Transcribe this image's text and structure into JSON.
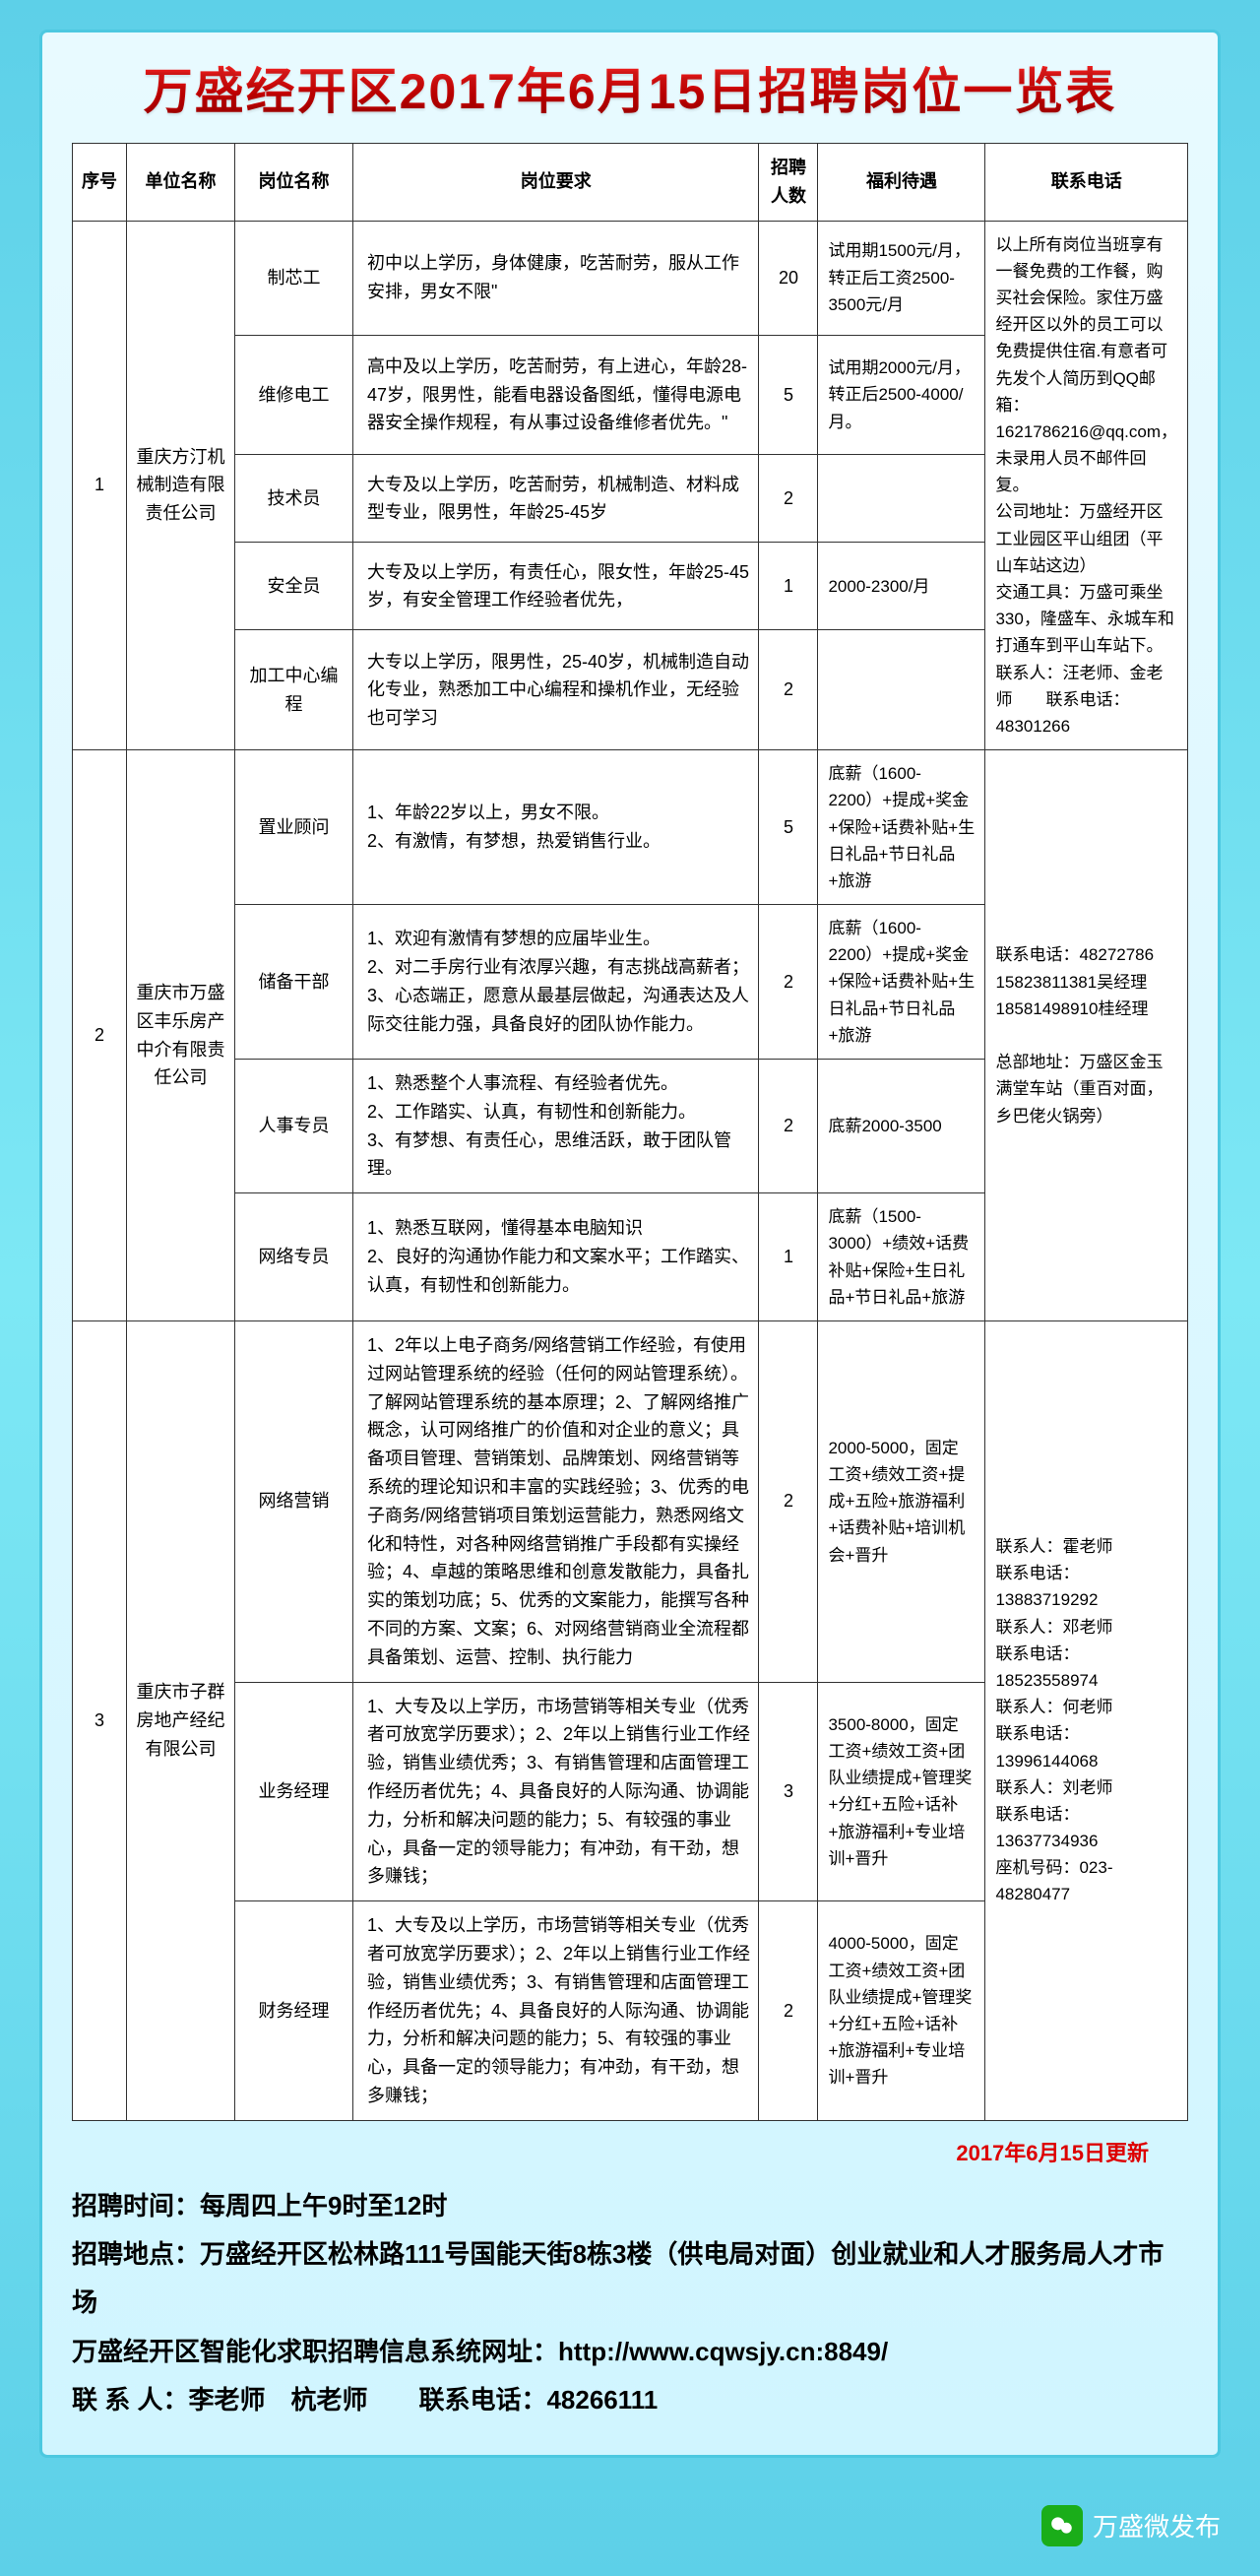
{
  "title": "万盛经开区2017年6月15日招聘岗位一览表",
  "headers": {
    "seq": "序号",
    "company": "单位名称",
    "position": "岗位名称",
    "requirements": "岗位要求",
    "count": "招聘人数",
    "benefits": "福利待遇",
    "contact": "联系电话"
  },
  "companies": [
    {
      "seq": "1",
      "name": "重庆方汀机械制造有限责任公司",
      "contact": "以上所有岗位当班享有一餐免费的工作餐，购买社会保险。家住万盛经开区以外的员工可以免费提供住宿.有意者可先发个人简历到QQ邮箱：1621786216@qq.com，未录用人员不邮件回复。\n公司地址：万盛经开区工业园区平山组团（平山车站这边）\n交通工具：万盛可乘坐330，隆盛车、永城车和打通车到平山车站下。\n联系人：汪老师、金老师　　联系电话：48301266",
      "positions": [
        {
          "name": "制芯工",
          "req": "初中以上学历，身体健康，吃苦耐劳，服从工作安排，男女不限\"",
          "count": "20",
          "benefit": "试用期1500元/月，转正后工资2500-3500元/月"
        },
        {
          "name": "维修电工",
          "req": "高中及以上学历，吃苦耐劳，有上进心，年龄28-47岁，限男性，能看电器设备图纸，懂得电源电器安全操作规程，有从事过设备维修者优先。\"",
          "count": "5",
          "benefit": "试用期2000元/月，转正后2500-4000/月。"
        },
        {
          "name": "技术员",
          "req": "大专及以上学历，吃苦耐劳，机械制造、材料成型专业，限男性，年龄25-45岁",
          "count": "2",
          "benefit": ""
        },
        {
          "name": "安全员",
          "req": "大专及以上学历，有责任心，限女性，年龄25-45岁，有安全管理工作经验者优先，",
          "count": "1",
          "benefit": "2000-2300/月"
        },
        {
          "name": "加工中心编程",
          "req": "大专以上学历，限男性，25-40岁，机械制造自动化专业，熟悉加工中心编程和操机作业，无经验也可学习",
          "count": "2",
          "benefit": ""
        }
      ]
    },
    {
      "seq": "2",
      "name": "重庆市万盛区丰乐房产中介有限责任公司",
      "contact": "联系电话：48272786\n15823811381吴经理\n18581498910桂经理\n\n总部地址：万盛区金玉满堂车站（重百对面，乡巴佬火锅旁）",
      "positions": [
        {
          "name": "置业顾问",
          "req": "1、年龄22岁以上，男女不限。\n2、有激情，有梦想，热爱销售行业。",
          "count": "5",
          "benefit": "底薪（1600-2200）+提成+奖金+保险+话费补贴+生日礼品+节日礼品+旅游"
        },
        {
          "name": "储备干部",
          "req": "1、欢迎有激情有梦想的应届毕业生。\n2、对二手房行业有浓厚兴趣，有志挑战高薪者；\n3、心态端正，愿意从最基层做起，沟通表达及人际交往能力强，具备良好的团队协作能力。",
          "count": "2",
          "benefit": "底薪（1600-2200）+提成+奖金+保险+话费补贴+生日礼品+节日礼品+旅游"
        },
        {
          "name": "人事专员",
          "req": "1、熟悉整个人事流程、有经验者优先。\n2、工作踏实、认真，有韧性和创新能力。\n3、有梦想、有责任心，思维活跃，敢于团队管理。",
          "count": "2",
          "benefit": "底薪2000-3500"
        },
        {
          "name": "网络专员",
          "req": "1、熟悉互联网，懂得基本电脑知识\n2、良好的沟通协作能力和文案水平；工作踏实、认真，有韧性和创新能力。",
          "count": "1",
          "benefit": "底薪（1500-3000）+绩效+话费补贴+保险+生日礼品+节日礼品+旅游"
        }
      ]
    },
    {
      "seq": "3",
      "name": "重庆市子群房地产经纪有限公司",
      "contact": "联系人：霍老师\n联系电话：13883719292\n联系人：邓老师\n联系电话：18523558974\n联系人：何老师\n联系电话：13996144068\n联系人：刘老师\n联系电话：13637734936\n座机号码：023-48280477",
      "positions": [
        {
          "name": "网络营销",
          "req": "1、2年以上电子商务/网络营销工作经验，有使用过网站管理系统的经验（任何的网站管理系统）。了解网站管理系统的基本原理；2、了解网络推广概念，认可网络推广的价值和对企业的意义；具备项目管理、营销策划、品牌策划、网络营销等系统的理论知识和丰富的实践经验；3、优秀的电子商务/网络营销项目策划运营能力，熟悉网络文化和特性，对各种网络营销推广手段都有实操经验；4、卓越的策略思维和创意发散能力，具备扎实的策划功底；5、优秀的文案能力，能撰写各种不同的方案、文案；6、对网络营销商业全流程都具备策划、运营、控制、执行能力",
          "count": "2",
          "benefit": "2000-5000，固定工资+绩效工资+提成+五险+旅游福利+话费补贴+培训机会+晋升"
        },
        {
          "name": "业务经理",
          "req": "1、大专及以上学历，市场营销等相关专业（优秀者可放宽学历要求）；2、2年以上销售行业工作经验，销售业绩优秀；3、有销售管理和店面管理工作经历者优先；4、具备良好的人际沟通、协调能力，分析和解决问题的能力；5、有较强的事业心，具备一定的领导能力；有冲劲，有干劲，想多赚钱；",
          "count": "3",
          "benefit": "3500-8000，固定工资+绩效工资+团队业绩提成+管理奖+分红+五险+话补+旅游福利+专业培训+晋升"
        },
        {
          "name": "财务经理",
          "req": "1、大专及以上学历，市场营销等相关专业（优秀者可放宽学历要求）；2、2年以上销售行业工作经验，销售业绩优秀；3、有销售管理和店面管理工作经历者优先；4、具备良好的人际沟通、协调能力，分析和解决问题的能力；5、有较强的事业心，具备一定的领导能力；有冲劲，有干劲，想多赚钱；",
          "count": "2",
          "benefit": "4000-5000，固定工资+绩效工资+团队业绩提成+管理奖+分红+五险+话补+旅游福利+专业培训+晋升"
        }
      ]
    }
  ],
  "update": "2017年6月15日更新",
  "footer": {
    "l1": "招聘时间：每周四上午9时至12时",
    "l2": "招聘地点：万盛经开区松林路111号国能天街8栋3楼（供电局对面）创业就业和人才服务局人才市场",
    "l3": "万盛经开区智能化求职招聘信息系统网址：http://www.cqwsjy.cn:8849/",
    "l4": "联 系 人：李老师　杭老师　　联系电话：48266111"
  },
  "watermark": "万盛微发布"
}
